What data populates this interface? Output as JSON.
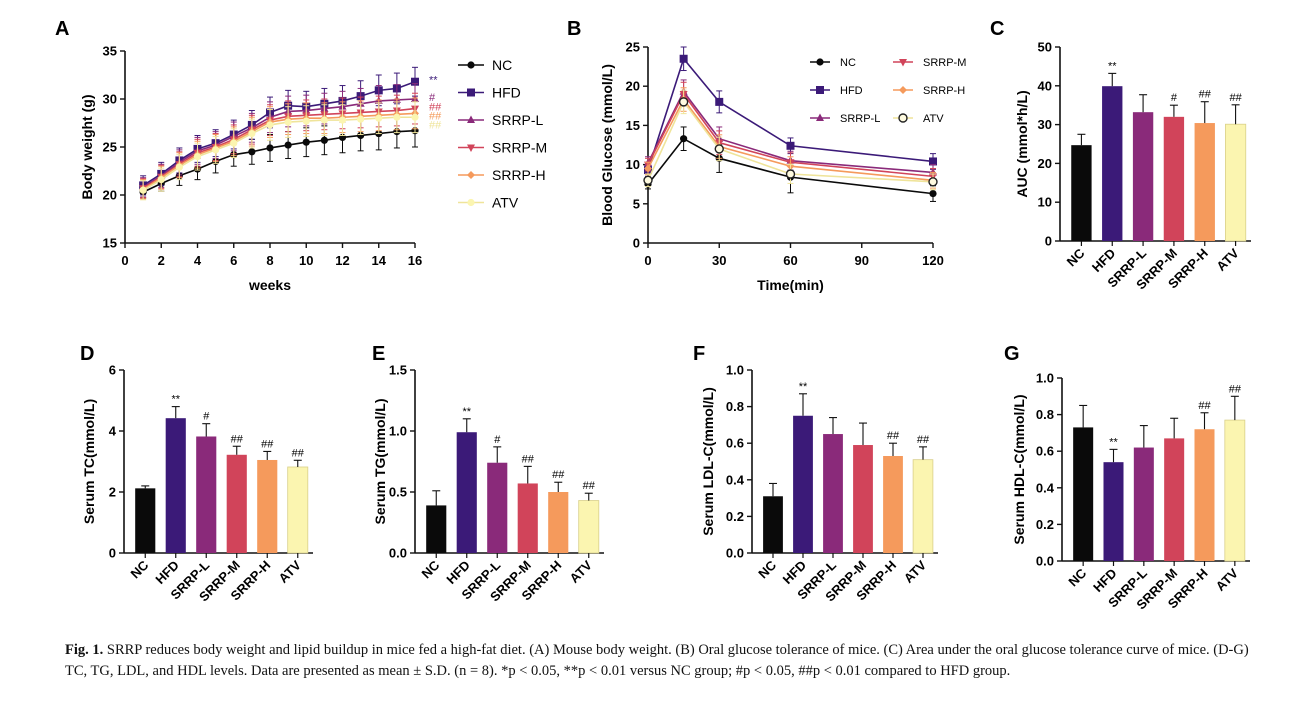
{
  "colors": {
    "NC": "#0a0a0a",
    "HFD": "#3b1a78",
    "SRRP-L": "#8a2a7a",
    "SRRP-M": "#d1445a",
    "SRRP-H": "#f59a5c",
    "ATV": "#fbf5b0",
    "ATV_line": "#efe49a"
  },
  "caption": {
    "label": "Fig. 1.",
    "text": "SRRP reduces body weight and lipid buildup in mice fed a high-fat diet. (A) Mouse body weight. (B) Oral glucose tolerance of mice. (C) Area under the oral glucose tolerance curve of mice. (D-G) TC, TG, LDL, and HDL levels. Data are presented as mean ± S.D. (n = 8). *p < 0.05, **p < 0.01 versus NC group; #p < 0.05, ##p < 0.01 compared to HFD group."
  },
  "chart_data": [
    {
      "panel": "A",
      "type": "line",
      "title": "",
      "xlabel": "weeks",
      "ylabel": "Body weight (g)",
      "xlim": [
        0,
        16
      ],
      "ylim": [
        15,
        35
      ],
      "xticks": [
        "0",
        "2",
        "4",
        "6",
        "8",
        "10",
        "12",
        "14",
        "16"
      ],
      "yticks": [
        "15",
        "20",
        "25",
        "30",
        "35"
      ],
      "x": [
        1,
        2,
        3,
        4,
        5,
        6,
        7,
        8,
        9,
        10,
        11,
        12,
        13,
        14,
        15,
        16
      ],
      "series": [
        {
          "name": "NC",
          "marker": "circle",
          "values": [
            20.3,
            21.2,
            22.0,
            22.7,
            23.5,
            24.2,
            24.5,
            24.9,
            25.2,
            25.5,
            25.7,
            26.0,
            26.2,
            26.4,
            26.6,
            26.7
          ],
          "error": [
            0.6,
            0.8,
            1.0,
            1.1,
            1.2,
            1.2,
            1.3,
            1.4,
            1.4,
            1.5,
            1.5,
            1.6,
            1.6,
            1.7,
            1.7,
            1.7
          ]
        },
        {
          "name": "HFD",
          "marker": "square",
          "values": [
            21.0,
            22.2,
            23.6,
            24.8,
            25.4,
            26.3,
            27.3,
            28.6,
            29.3,
            29.2,
            29.5,
            29.8,
            30.3,
            30.9,
            31.1,
            31.8
          ],
          "error": [
            1.0,
            1.2,
            1.3,
            1.4,
            1.4,
            1.5,
            1.5,
            1.6,
            1.6,
            1.6,
            1.6,
            1.6,
            1.6,
            1.6,
            1.6,
            1.5
          ]
        },
        {
          "name": "SRRP-L",
          "marker": "triangle-up",
          "values": [
            20.8,
            22.0,
            23.4,
            24.6,
            25.2,
            26.1,
            27.0,
            28.1,
            28.7,
            28.8,
            29.0,
            29.2,
            29.5,
            29.8,
            29.9,
            30.0
          ],
          "error": [
            1.0,
            1.2,
            1.3,
            1.4,
            1.4,
            1.5,
            1.5,
            1.6,
            1.6,
            1.6,
            1.6,
            1.6,
            1.6,
            1.6,
            1.6,
            1.6
          ]
        },
        {
          "name": "SRRP-M",
          "marker": "triangle-down",
          "values": [
            20.7,
            21.9,
            23.2,
            24.4,
            25.0,
            25.8,
            26.8,
            27.8,
            28.2,
            28.3,
            28.4,
            28.5,
            28.6,
            28.7,
            28.8,
            29.0
          ],
          "error": [
            1.0,
            1.2,
            1.3,
            1.4,
            1.4,
            1.5,
            1.5,
            1.6,
            1.6,
            1.6,
            1.6,
            1.6,
            1.6,
            1.6,
            1.6,
            1.6
          ]
        },
        {
          "name": "SRRP-H",
          "marker": "diamond",
          "values": [
            20.6,
            21.8,
            23.1,
            24.2,
            24.9,
            25.6,
            26.6,
            27.6,
            27.9,
            28.0,
            28.0,
            28.1,
            28.2,
            28.3,
            28.4,
            28.5
          ],
          "error": [
            1.0,
            1.2,
            1.3,
            1.4,
            1.4,
            1.5,
            1.5,
            1.6,
            1.6,
            1.6,
            1.6,
            1.6,
            1.6,
            1.6,
            1.6,
            1.6
          ]
        },
        {
          "name": "ATV",
          "marker": "circle",
          "values": [
            20.5,
            21.6,
            22.9,
            24.0,
            24.7,
            25.4,
            26.4,
            27.3,
            27.6,
            27.7,
            27.8,
            27.8,
            27.9,
            28.0,
            28.1,
            28.1
          ],
          "error": [
            1.0,
            1.2,
            1.3,
            1.4,
            1.4,
            1.5,
            1.5,
            1.6,
            1.6,
            1.6,
            1.6,
            1.6,
            1.6,
            1.6,
            1.6,
            1.6
          ]
        }
      ],
      "annotations": [
        {
          "series": "HFD",
          "text": "**"
        },
        {
          "series": "SRRP-L",
          "text": "#"
        },
        {
          "series": "SRRP-M",
          "text": "##"
        },
        {
          "series": "SRRP-H",
          "text": "##"
        },
        {
          "series": "ATV",
          "text": "##"
        }
      ],
      "legend": "right"
    },
    {
      "panel": "B",
      "type": "line",
      "title": "",
      "xlabel": "Time(min)",
      "ylabel": "Blood Glucose (mmol/L)",
      "xlim": [
        0,
        120
      ],
      "ylim": [
        0,
        25
      ],
      "xticks": [
        "0",
        "30",
        "60",
        "90",
        "120"
      ],
      "yticks": [
        "0",
        "5",
        "10",
        "15",
        "20",
        "25"
      ],
      "x": [
        0,
        15,
        30,
        60,
        120
      ],
      "series": [
        {
          "name": "NC",
          "marker": "circle",
          "values": [
            7.5,
            13.3,
            10.8,
            8.4,
            6.3
          ],
          "error": [
            0.6,
            1.5,
            1.8,
            2.0,
            1.0
          ]
        },
        {
          "name": "HFD",
          "marker": "square",
          "values": [
            9.3,
            23.5,
            18.0,
            12.4,
            10.4
          ],
          "error": [
            0.8,
            1.5,
            1.4,
            1.0,
            1.0
          ]
        },
        {
          "name": "SRRP-L",
          "marker": "triangle-up",
          "values": [
            10.2,
            19.3,
            13.3,
            10.5,
            9.0
          ],
          "error": [
            0.8,
            1.5,
            1.5,
            1.2,
            1.0
          ]
        },
        {
          "name": "SRRP-M",
          "marker": "triangle-down",
          "values": [
            10.0,
            19.0,
            12.8,
            10.3,
            8.5
          ],
          "error": [
            0.8,
            1.5,
            1.5,
            1.2,
            1.0
          ]
        },
        {
          "name": "SRRP-H",
          "marker": "diamond",
          "values": [
            9.5,
            18.3,
            12.3,
            9.8,
            8.0
          ],
          "error": [
            0.8,
            1.5,
            1.5,
            1.2,
            1.0
          ]
        },
        {
          "name": "ATV",
          "marker": "circle-open",
          "values": [
            8.0,
            18.0,
            12.0,
            8.8,
            7.8
          ],
          "error": [
            0.8,
            1.5,
            1.5,
            1.2,
            1.0
          ]
        }
      ],
      "legend": "top-right"
    },
    {
      "panel": "C",
      "type": "bar",
      "title": "",
      "xlabel": "",
      "ylabel": "AUC (mmol*h/L)",
      "ylim": [
        0,
        50
      ],
      "yticks": [
        "0",
        "10",
        "20",
        "30",
        "40",
        "50"
      ],
      "categories": [
        "NC",
        "HFD",
        "SRRP-L",
        "SRRP-M",
        "SRRP-H",
        "ATV"
      ],
      "values": [
        24.7,
        39.9,
        33.2,
        32.0,
        30.4,
        30.1
      ],
      "error": [
        2.8,
        3.3,
        4.5,
        3.0,
        5.5,
        5.0
      ],
      "labels": [
        "",
        "**",
        "",
        "#",
        "##",
        "##"
      ]
    },
    {
      "panel": "D",
      "type": "bar",
      "title": "",
      "xlabel": "",
      "ylabel": "Serum TC(mmol/L)",
      "ylim": [
        0,
        6
      ],
      "yticks": [
        "0",
        "2",
        "4",
        "6"
      ],
      "categories": [
        "NC",
        "HFD",
        "SRRP-L",
        "SRRP-M",
        "SRRP-H",
        "ATV"
      ],
      "values": [
        2.12,
        4.42,
        3.82,
        3.22,
        3.05,
        2.82
      ],
      "error": [
        0.08,
        0.38,
        0.42,
        0.28,
        0.28,
        0.22
      ],
      "labels": [
        "",
        "**",
        "#",
        "##",
        "##",
        "##"
      ]
    },
    {
      "panel": "E",
      "type": "bar",
      "title": "",
      "xlabel": "",
      "ylabel": "Serum TG(mmol/L)",
      "ylim": [
        0,
        1.5
      ],
      "yticks": [
        "0.0",
        "0.5",
        "1.0",
        "1.5"
      ],
      "categories": [
        "NC",
        "HFD",
        "SRRP-L",
        "SRRP-M",
        "SRRP-H",
        "ATV"
      ],
      "values": [
        0.39,
        0.99,
        0.74,
        0.57,
        0.5,
        0.43
      ],
      "error": [
        0.12,
        0.11,
        0.13,
        0.14,
        0.08,
        0.06
      ],
      "labels": [
        "",
        "**",
        "#",
        "##",
        "##",
        "##"
      ]
    },
    {
      "panel": "F",
      "type": "bar",
      "title": "",
      "xlabel": "",
      "ylabel": "Serum LDL-C(mmol/L)",
      "ylim": [
        0,
        1.0
      ],
      "yticks": [
        "0.0",
        "0.2",
        "0.4",
        "0.6",
        "0.8",
        "1.0"
      ],
      "categories": [
        "NC",
        "HFD",
        "SRRP-L",
        "SRRP-M",
        "SRRP-H",
        "ATV"
      ],
      "values": [
        0.31,
        0.75,
        0.65,
        0.59,
        0.53,
        0.51
      ],
      "error": [
        0.07,
        0.12,
        0.09,
        0.12,
        0.07,
        0.07
      ],
      "labels": [
        "",
        "**",
        "",
        "",
        "##",
        "##"
      ]
    },
    {
      "panel": "G",
      "type": "bar",
      "title": "",
      "xlabel": "",
      "ylabel": "Serum HDL-C(mmol/L)",
      "ylim": [
        0,
        1.0
      ],
      "yticks": [
        "0.0",
        "0.2",
        "0.4",
        "0.6",
        "0.8",
        "1.0"
      ],
      "categories": [
        "NC",
        "HFD",
        "SRRP-L",
        "SRRP-M",
        "SRRP-H",
        "ATV"
      ],
      "values": [
        0.73,
        0.54,
        0.62,
        0.67,
        0.72,
        0.77
      ],
      "error": [
        0.12,
        0.07,
        0.12,
        0.11,
        0.09,
        0.13
      ],
      "labels": [
        "",
        "**",
        "",
        "",
        "##",
        "##"
      ]
    }
  ]
}
